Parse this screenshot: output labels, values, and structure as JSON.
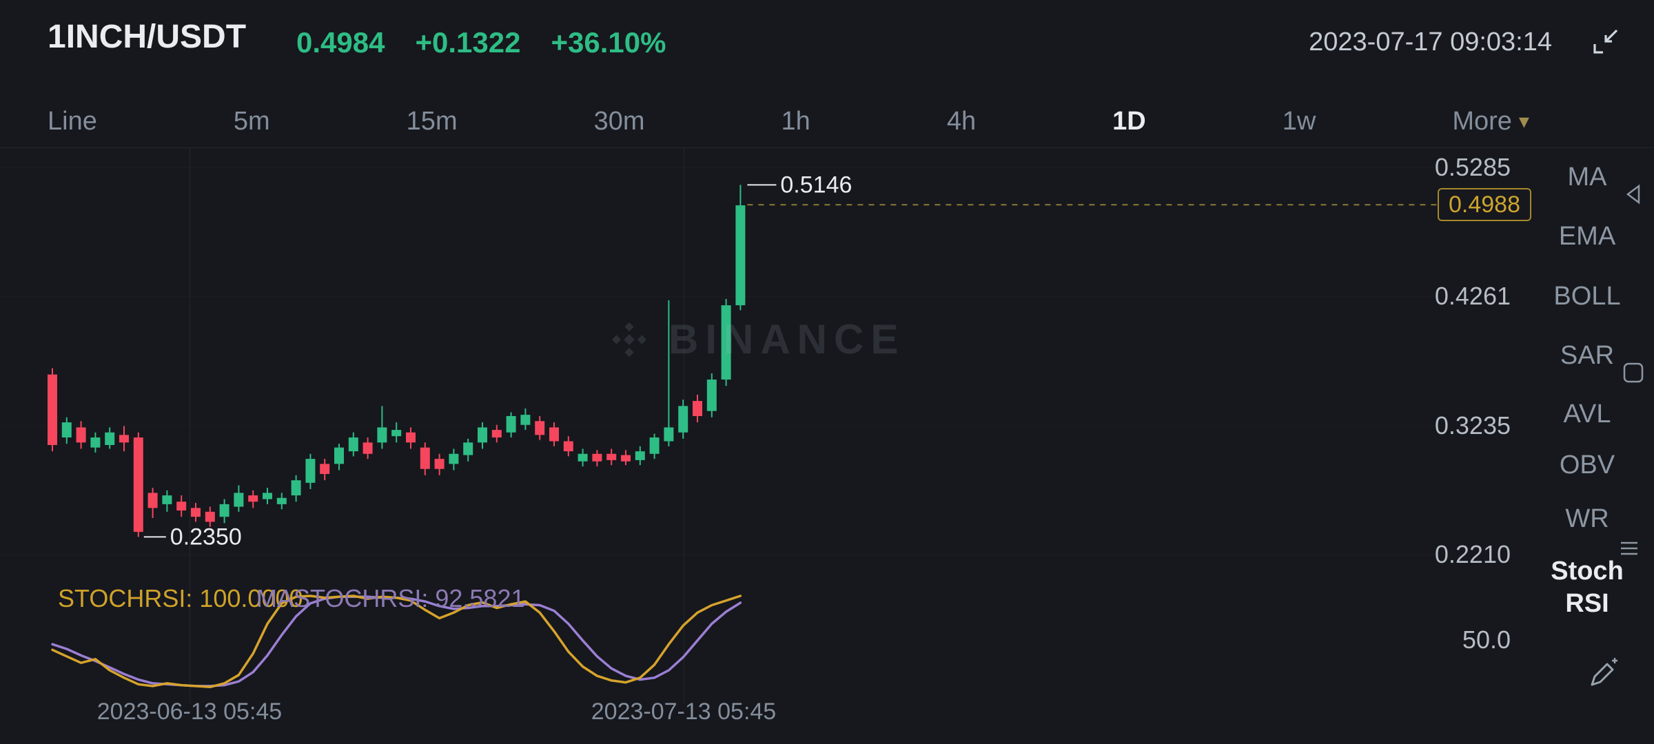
{
  "header": {
    "symbol": "1INCH/USDT",
    "last_price": "0.4984",
    "change": "+0.1322",
    "change_percent": "+36.10%",
    "timestamp": "2023-07-17 09:03:14"
  },
  "tabs": {
    "items": [
      {
        "label": "Line"
      },
      {
        "label": "5m"
      },
      {
        "label": "15m"
      },
      {
        "label": "30m"
      },
      {
        "label": "1h"
      },
      {
        "label": "4h"
      },
      {
        "label": "1D"
      },
      {
        "label": "1w"
      },
      {
        "label": "More",
        "caret": true
      }
    ],
    "active": "1D"
  },
  "chart": {
    "y_axis_labels": [
      "0.5285",
      "0.4261",
      "0.3235",
      "0.2210"
    ],
    "current_price_label": "0.4988",
    "high_annotation": "0.5146",
    "low_annotation": "0.2350",
    "watermark_text": "BINANCE",
    "x_axis_labels": [
      "2023-06-13 05:45",
      "2023-07-13 05:45"
    ]
  },
  "sidebar": {
    "items": [
      {
        "label": "MA"
      },
      {
        "label": "EMA"
      },
      {
        "label": "BOLL"
      },
      {
        "label": "SAR"
      },
      {
        "label": "AVL"
      },
      {
        "label": "OBV"
      },
      {
        "label": "WR"
      },
      {
        "label": "Stoch RSI",
        "active": true
      }
    ]
  },
  "indicator_panel": {
    "k_label": "STOCHRSI: 100.0000",
    "d_label": "MASTOCHRSI: 92.5821",
    "mid_label": "50.0"
  },
  "icons": {
    "caret_down": "▾"
  },
  "palette": {
    "up": "#2ebd85",
    "down": "#f6465d",
    "accent_yellow": "#cda42e",
    "dashed_line": "#8a7a35",
    "stoch_k": "#d6a32c",
    "stoch_d": "#9b7fd4",
    "annotation": "#e8ebef",
    "grid": "rgba(132,142,156,0.06)"
  },
  "chart_data": {
    "type": "candlestick",
    "symbol": "1INCH/USDT",
    "interval": "1D",
    "y_axis_ticks": [
      0.5285,
      0.4261,
      0.3235,
      0.221
    ],
    "current_price": 0.4988,
    "high_marker": 0.5146,
    "low_marker": 0.235,
    "x_axis_labels": [
      "2023-06-13 05:45",
      "2023-07-13 05:45"
    ],
    "candles_ohlc": [
      [
        0.364,
        0.369,
        0.303,
        0.308
      ],
      [
        0.314,
        0.33,
        0.309,
        0.326
      ],
      [
        0.322,
        0.327,
        0.305,
        0.31
      ],
      [
        0.306,
        0.318,
        0.302,
        0.314
      ],
      [
        0.308,
        0.322,
        0.305,
        0.318
      ],
      [
        0.316,
        0.323,
        0.303,
        0.31
      ],
      [
        0.314,
        0.318,
        0.235,
        0.239
      ],
      [
        0.27,
        0.274,
        0.25,
        0.258
      ],
      [
        0.261,
        0.272,
        0.255,
        0.268
      ],
      [
        0.263,
        0.268,
        0.251,
        0.256
      ],
      [
        0.258,
        0.262,
        0.247,
        0.251
      ],
      [
        0.255,
        0.259,
        0.243,
        0.247
      ],
      [
        0.251,
        0.265,
        0.246,
        0.261
      ],
      [
        0.259,
        0.276,
        0.255,
        0.27
      ],
      [
        0.268,
        0.272,
        0.258,
        0.263
      ],
      [
        0.265,
        0.274,
        0.261,
        0.27
      ],
      [
        0.261,
        0.27,
        0.257,
        0.266
      ],
      [
        0.268,
        0.284,
        0.263,
        0.28
      ],
      [
        0.278,
        0.301,
        0.273,
        0.297
      ],
      [
        0.293,
        0.297,
        0.28,
        0.285
      ],
      [
        0.293,
        0.309,
        0.288,
        0.306
      ],
      [
        0.303,
        0.318,
        0.299,
        0.314
      ],
      [
        0.31,
        0.314,
        0.297,
        0.301
      ],
      [
        0.31,
        0.339,
        0.305,
        0.322
      ],
      [
        0.315,
        0.326,
        0.31,
        0.32
      ],
      [
        0.318,
        0.322,
        0.305,
        0.31
      ],
      [
        0.306,
        0.31,
        0.284,
        0.289
      ],
      [
        0.297,
        0.301,
        0.284,
        0.289
      ],
      [
        0.293,
        0.305,
        0.288,
        0.301
      ],
      [
        0.3,
        0.313,
        0.295,
        0.31
      ],
      [
        0.31,
        0.326,
        0.305,
        0.322
      ],
      [
        0.32,
        0.324,
        0.31,
        0.314
      ],
      [
        0.318,
        0.334,
        0.314,
        0.331
      ],
      [
        0.324,
        0.337,
        0.32,
        0.332
      ],
      [
        0.327,
        0.331,
        0.312,
        0.316
      ],
      [
        0.322,
        0.326,
        0.307,
        0.311
      ],
      [
        0.311,
        0.315,
        0.299,
        0.303
      ],
      [
        0.295,
        0.305,
        0.291,
        0.301
      ],
      [
        0.301,
        0.304,
        0.291,
        0.295
      ],
      [
        0.301,
        0.305,
        0.292,
        0.296
      ],
      [
        0.3,
        0.304,
        0.292,
        0.295
      ],
      [
        0.296,
        0.307,
        0.292,
        0.303
      ],
      [
        0.301,
        0.317,
        0.297,
        0.314
      ],
      [
        0.311,
        0.423,
        0.307,
        0.322
      ],
      [
        0.318,
        0.344,
        0.313,
        0.339
      ],
      [
        0.343,
        0.348,
        0.326,
        0.331
      ],
      [
        0.335,
        0.365,
        0.33,
        0.36
      ],
      [
        0.36,
        0.424,
        0.355,
        0.419
      ],
      [
        0.419,
        0.5146,
        0.415,
        0.4984
      ]
    ],
    "indicator": {
      "name": "StochRSI",
      "range": [
        0,
        100
      ],
      "mid_tick": 50.0,
      "k": [
        42,
        35,
        28,
        32,
        20,
        12,
        5,
        3,
        6,
        4,
        3,
        2,
        6,
        15,
        38,
        70,
        92,
        99,
        100,
        98,
        99,
        100,
        97,
        99,
        98,
        95,
        85,
        76,
        82,
        90,
        93,
        87,
        91,
        94,
        82,
        62,
        40,
        24,
        14,
        9,
        7,
        12,
        26,
        48,
        68,
        82,
        90,
        95,
        100
      ],
      "d": [
        48,
        43,
        36,
        30,
        23,
        16,
        10,
        6,
        5,
        4,
        3,
        3,
        4,
        8,
        18,
        36,
        58,
        78,
        92,
        97,
        99,
        99,
        99,
        98,
        98,
        97,
        94,
        89,
        86,
        87,
        89,
        89,
        90,
        91,
        90,
        84,
        70,
        52,
        35,
        22,
        14,
        10,
        12,
        20,
        34,
        52,
        70,
        83,
        92.6
      ]
    }
  }
}
